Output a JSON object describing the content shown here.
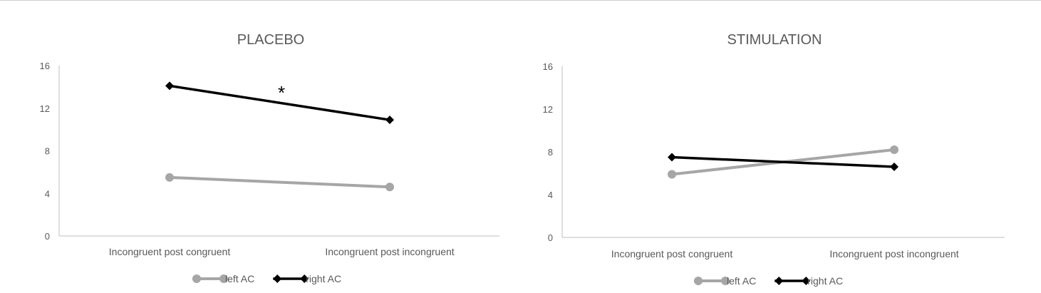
{
  "colors": {
    "left": "#a6a6a6",
    "right": "#000000",
    "axis": "#bfbfbf",
    "text": "#595959"
  },
  "chart_data": [
    {
      "type": "line",
      "title": "PLACEBO",
      "categories": [
        "Incongruent post congruent",
        "Incongruent post incongruent"
      ],
      "series": [
        {
          "name": "left AC",
          "values": [
            5.5,
            4.6
          ],
          "marker": "circle"
        },
        {
          "name": "right AC",
          "values": [
            14.1,
            10.9
          ],
          "marker": "diamond"
        }
      ],
      "ylim": [
        0,
        16
      ],
      "yticks": [
        "0",
        "4",
        "8",
        "12",
        "16"
      ],
      "annotation": "*",
      "legend": "bottom",
      "grid": false
    },
    {
      "type": "line",
      "title": "STIMULATION",
      "categories": [
        "Incongruent post congruent",
        "Incongruent post incongruent"
      ],
      "series": [
        {
          "name": "left AC",
          "values": [
            5.9,
            8.2
          ],
          "marker": "circle"
        },
        {
          "name": "right AC",
          "values": [
            7.5,
            6.6
          ],
          "marker": "diamond"
        }
      ],
      "ylim": [
        0,
        16
      ],
      "yticks": [
        "0",
        "4",
        "8",
        "12",
        "16"
      ],
      "legend": "bottom",
      "grid": false
    }
  ]
}
